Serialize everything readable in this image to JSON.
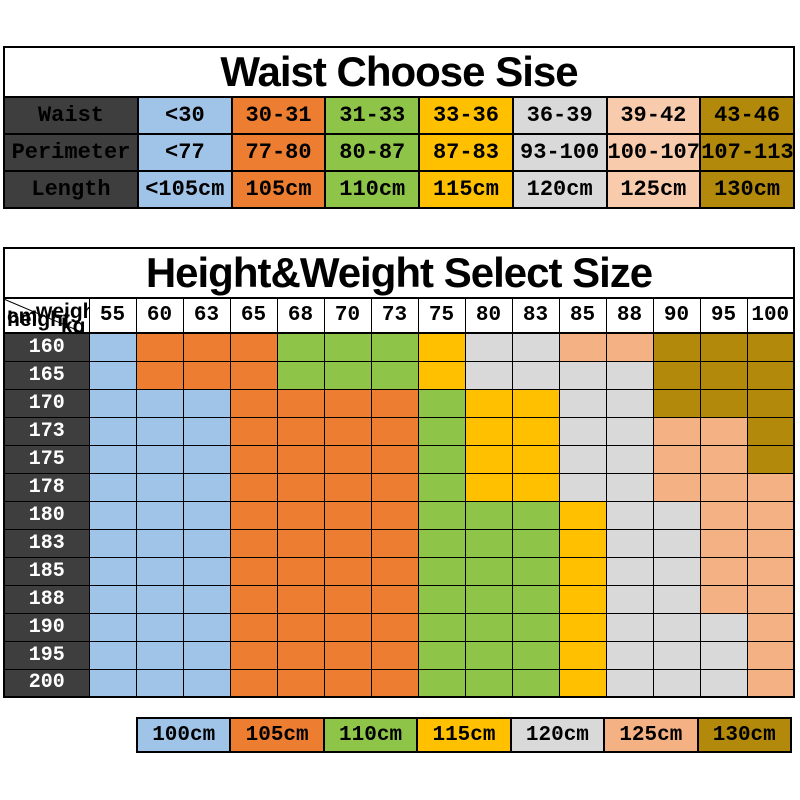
{
  "palette": {
    "dark": "#3E3E3E",
    "blue": "#A0C4E8",
    "orange": "#ED7D31",
    "green": "#8EC549",
    "yellow": "#FFC000",
    "gray": "#D9D9D9",
    "peach_light": "#F8CBAD",
    "peach": "#F4B183",
    "gold": "#B3890B",
    "border": "#000000",
    "title_text": "#000000",
    "label_text": "#FFFFFF"
  },
  "waist_table": {
    "title": "Waist Choose Sise",
    "cell_colors": [
      "blue",
      "orange",
      "green",
      "yellow",
      "gray",
      "peach_light",
      "gold"
    ],
    "rows": [
      {
        "label": "Waist",
        "cells": [
          "<30",
          "30-31",
          "31-33",
          "33-36",
          "36-39",
          "39-42",
          "43-46"
        ]
      },
      {
        "label": "Perimeter",
        "cells": [
          "<77",
          "77-80",
          "80-87",
          "87-83",
          "93-100",
          "100-107",
          "107-113"
        ]
      },
      {
        "label": "Length",
        "cells": [
          "<105cm",
          "105cm",
          "110cm",
          "115cm",
          "120cm",
          "125cm",
          "130cm"
        ]
      }
    ]
  },
  "size_table": {
    "title": "Height&Weight Select Size",
    "corner": {
      "weight_label": "weight",
      "weight_unit": "kg",
      "height_unit": "cm",
      "height_label": "height"
    },
    "weights": [
      "55",
      "60",
      "63",
      "65",
      "68",
      "70",
      "73",
      "75",
      "80",
      "83",
      "85",
      "88",
      "90",
      "95",
      "100"
    ],
    "rows": [
      {
        "height": "160",
        "cells": [
          "blue",
          "orange",
          "orange",
          "orange",
          "green",
          "green",
          "green",
          "yellow",
          "gray",
          "gray",
          "peach",
          "peach",
          "gold",
          "gold",
          "gold"
        ]
      },
      {
        "height": "165",
        "cells": [
          "blue",
          "orange",
          "orange",
          "orange",
          "green",
          "green",
          "green",
          "yellow",
          "gray",
          "gray",
          "gray",
          "gray",
          "gold",
          "gold",
          "gold"
        ]
      },
      {
        "height": "170",
        "cells": [
          "blue",
          "blue",
          "blue",
          "orange",
          "orange",
          "orange",
          "orange",
          "green",
          "yellow",
          "yellow",
          "gray",
          "gray",
          "gold",
          "gold",
          "gold"
        ]
      },
      {
        "height": "173",
        "cells": [
          "blue",
          "blue",
          "blue",
          "orange",
          "orange",
          "orange",
          "orange",
          "green",
          "yellow",
          "yellow",
          "gray",
          "gray",
          "peach",
          "peach",
          "gold"
        ]
      },
      {
        "height": "175",
        "cells": [
          "blue",
          "blue",
          "blue",
          "orange",
          "orange",
          "orange",
          "orange",
          "green",
          "yellow",
          "yellow",
          "gray",
          "gray",
          "peach",
          "peach",
          "gold"
        ]
      },
      {
        "height": "178",
        "cells": [
          "blue",
          "blue",
          "blue",
          "orange",
          "orange",
          "orange",
          "orange",
          "green",
          "yellow",
          "yellow",
          "gray",
          "gray",
          "peach",
          "peach",
          "peach"
        ]
      },
      {
        "height": "180",
        "cells": [
          "blue",
          "blue",
          "blue",
          "orange",
          "orange",
          "orange",
          "orange",
          "green",
          "green",
          "green",
          "yellow",
          "gray",
          "gray",
          "peach",
          "peach"
        ]
      },
      {
        "height": "183",
        "cells": [
          "blue",
          "blue",
          "blue",
          "orange",
          "orange",
          "orange",
          "orange",
          "green",
          "green",
          "green",
          "yellow",
          "gray",
          "gray",
          "peach",
          "peach"
        ]
      },
      {
        "height": "185",
        "cells": [
          "blue",
          "blue",
          "blue",
          "orange",
          "orange",
          "orange",
          "orange",
          "green",
          "green",
          "green",
          "yellow",
          "gray",
          "gray",
          "peach",
          "peach"
        ]
      },
      {
        "height": "188",
        "cells": [
          "blue",
          "blue",
          "blue",
          "orange",
          "orange",
          "orange",
          "orange",
          "green",
          "green",
          "green",
          "yellow",
          "gray",
          "gray",
          "peach",
          "peach"
        ]
      },
      {
        "height": "190",
        "cells": [
          "blue",
          "blue",
          "blue",
          "orange",
          "orange",
          "orange",
          "orange",
          "green",
          "green",
          "green",
          "yellow",
          "gray",
          "gray",
          "gray",
          "peach"
        ]
      },
      {
        "height": "195",
        "cells": [
          "blue",
          "blue",
          "blue",
          "orange",
          "orange",
          "orange",
          "orange",
          "green",
          "green",
          "green",
          "yellow",
          "gray",
          "gray",
          "gray",
          "peach"
        ]
      },
      {
        "height": "200",
        "cells": [
          "blue",
          "blue",
          "blue",
          "orange",
          "orange",
          "orange",
          "orange",
          "green",
          "green",
          "green",
          "yellow",
          "gray",
          "gray",
          "gray",
          "peach"
        ]
      }
    ]
  },
  "legend": {
    "items": [
      {
        "label": "100cm",
        "color": "blue"
      },
      {
        "label": "105cm",
        "color": "orange"
      },
      {
        "label": "110cm",
        "color": "green"
      },
      {
        "label": "115cm",
        "color": "yellow"
      },
      {
        "label": "120cm",
        "color": "gray"
      },
      {
        "label": "125cm",
        "color": "peach"
      },
      {
        "label": "130cm",
        "color": "gold"
      }
    ]
  },
  "chart_data": [
    {
      "type": "table",
      "title": "Waist Choose Sise",
      "rows": [
        [
          "Waist",
          "<30",
          "30-31",
          "31-33",
          "33-36",
          "36-39",
          "39-42",
          "43-46"
        ],
        [
          "Perimeter",
          "<77",
          "77-80",
          "80-87",
          "87-83",
          "93-100",
          "100-107",
          "107-113"
        ],
        [
          "Length",
          "<105cm",
          "105cm",
          "110cm",
          "115cm",
          "120cm",
          "125cm",
          "130cm"
        ]
      ]
    },
    {
      "type": "heatmap",
      "title": "Height&Weight Select Size",
      "xlabel": "weight kg",
      "ylabel": "cm height",
      "x": [
        55,
        60,
        63,
        65,
        68,
        70,
        73,
        75,
        80,
        83,
        85,
        88,
        90,
        95,
        100
      ],
      "y": [
        160,
        165,
        170,
        173,
        175,
        178,
        180,
        183,
        185,
        188,
        190,
        195,
        200
      ],
      "legend_position": "bottom",
      "color_to_size": {
        "blue": "100cm",
        "orange": "105cm",
        "green": "110cm",
        "yellow": "115cm",
        "gray": "120cm",
        "peach": "125cm",
        "gold": "130cm"
      },
      "values": [
        [
          "100cm",
          "105cm",
          "105cm",
          "105cm",
          "110cm",
          "110cm",
          "110cm",
          "115cm",
          "120cm",
          "120cm",
          "125cm",
          "125cm",
          "130cm",
          "130cm",
          "130cm"
        ],
        [
          "100cm",
          "105cm",
          "105cm",
          "105cm",
          "110cm",
          "110cm",
          "110cm",
          "115cm",
          "120cm",
          "120cm",
          "120cm",
          "120cm",
          "130cm",
          "130cm",
          "130cm"
        ],
        [
          "100cm",
          "100cm",
          "100cm",
          "105cm",
          "105cm",
          "105cm",
          "105cm",
          "110cm",
          "115cm",
          "115cm",
          "120cm",
          "120cm",
          "130cm",
          "130cm",
          "130cm"
        ],
        [
          "100cm",
          "100cm",
          "100cm",
          "105cm",
          "105cm",
          "105cm",
          "105cm",
          "110cm",
          "115cm",
          "115cm",
          "120cm",
          "120cm",
          "125cm",
          "125cm",
          "130cm"
        ],
        [
          "100cm",
          "100cm",
          "100cm",
          "105cm",
          "105cm",
          "105cm",
          "105cm",
          "110cm",
          "115cm",
          "115cm",
          "120cm",
          "120cm",
          "125cm",
          "125cm",
          "130cm"
        ],
        [
          "100cm",
          "100cm",
          "100cm",
          "105cm",
          "105cm",
          "105cm",
          "105cm",
          "110cm",
          "115cm",
          "115cm",
          "120cm",
          "120cm",
          "125cm",
          "125cm",
          "125cm"
        ],
        [
          "100cm",
          "100cm",
          "100cm",
          "105cm",
          "105cm",
          "105cm",
          "105cm",
          "110cm",
          "110cm",
          "110cm",
          "115cm",
          "120cm",
          "120cm",
          "125cm",
          "125cm"
        ],
        [
          "100cm",
          "100cm",
          "100cm",
          "105cm",
          "105cm",
          "105cm",
          "105cm",
          "110cm",
          "110cm",
          "110cm",
          "115cm",
          "120cm",
          "120cm",
          "125cm",
          "125cm"
        ],
        [
          "100cm",
          "100cm",
          "100cm",
          "105cm",
          "105cm",
          "105cm",
          "105cm",
          "110cm",
          "110cm",
          "110cm",
          "115cm",
          "120cm",
          "120cm",
          "125cm",
          "125cm"
        ],
        [
          "100cm",
          "100cm",
          "100cm",
          "105cm",
          "105cm",
          "105cm",
          "105cm",
          "110cm",
          "110cm",
          "110cm",
          "115cm",
          "120cm",
          "120cm",
          "125cm",
          "125cm"
        ],
        [
          "100cm",
          "100cm",
          "100cm",
          "105cm",
          "105cm",
          "105cm",
          "105cm",
          "110cm",
          "110cm",
          "110cm",
          "115cm",
          "120cm",
          "120cm",
          "120cm",
          "125cm"
        ],
        [
          "100cm",
          "100cm",
          "100cm",
          "105cm",
          "105cm",
          "105cm",
          "105cm",
          "110cm",
          "110cm",
          "110cm",
          "115cm",
          "120cm",
          "120cm",
          "120cm",
          "125cm"
        ],
        [
          "100cm",
          "100cm",
          "100cm",
          "105cm",
          "105cm",
          "105cm",
          "105cm",
          "110cm",
          "110cm",
          "110cm",
          "115cm",
          "120cm",
          "120cm",
          "120cm",
          "125cm"
        ]
      ]
    }
  ]
}
